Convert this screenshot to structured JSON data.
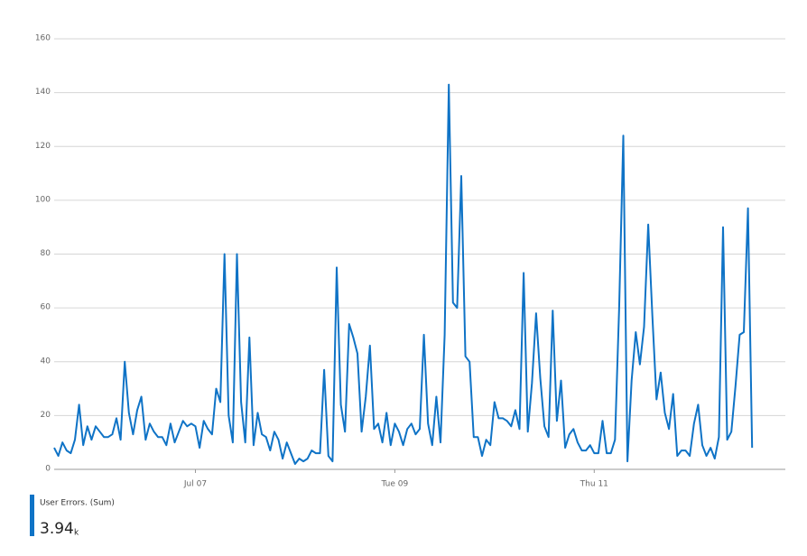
{
  "chart_data": {
    "type": "line",
    "x": [
      0,
      1,
      2,
      3,
      4,
      5,
      6,
      7,
      8,
      9,
      10,
      11,
      12,
      13,
      14,
      15,
      16,
      17,
      18,
      19,
      20,
      21,
      22,
      23,
      24,
      25,
      26,
      27,
      28,
      29,
      30,
      31,
      32,
      33,
      34,
      35,
      36,
      37,
      38,
      39,
      40,
      41,
      42,
      43,
      44,
      45,
      46,
      47,
      48,
      49,
      50,
      51,
      52,
      53,
      54,
      55,
      56,
      57,
      58,
      59,
      60,
      61,
      62,
      63,
      64,
      65,
      66,
      67,
      68,
      69,
      70,
      71,
      72,
      73,
      74,
      75,
      76,
      77,
      78,
      79,
      80,
      81,
      82,
      83,
      84,
      85,
      86,
      87,
      88,
      89,
      90,
      91,
      92,
      93,
      94,
      95,
      96,
      97,
      98,
      99,
      100,
      101,
      102,
      103,
      104,
      105,
      106,
      107,
      108,
      109,
      110,
      111,
      112,
      113,
      114,
      115,
      116,
      117,
      118,
      119,
      120,
      121,
      122,
      123,
      124,
      125,
      126,
      127,
      128,
      129,
      130,
      131,
      132,
      133,
      134,
      135,
      136,
      137,
      138,
      139,
      140,
      141,
      142,
      143,
      144,
      145,
      146,
      147,
      148,
      149,
      150,
      151,
      152,
      153,
      154,
      155,
      156,
      157,
      158,
      159,
      160,
      161,
      162,
      163,
      164,
      165,
      166,
      167,
      168
    ],
    "series": [
      {
        "name": "User Errors. (Sum)",
        "color": "#0f73c6",
        "values": [
          8,
          5,
          10,
          7,
          6,
          11,
          24,
          9,
          16,
          11,
          16,
          14,
          12,
          12,
          13,
          19,
          11,
          40,
          21,
          13,
          22,
          27,
          11,
          17,
          14,
          12,
          12,
          9,
          17,
          10,
          14,
          18,
          16,
          17,
          16,
          8,
          18,
          15,
          13,
          30,
          25,
          80,
          20,
          10,
          80,
          25,
          10,
          49,
          9,
          21,
          13,
          12,
          7,
          14,
          11,
          4,
          10,
          6,
          2,
          4,
          3,
          4,
          7,
          6,
          6,
          37,
          5,
          3,
          75,
          24,
          14,
          54,
          49,
          43,
          14,
          27,
          46,
          15,
          17,
          10,
          21,
          9,
          17,
          14,
          9,
          15,
          17,
          13,
          15,
          50,
          17,
          9,
          27,
          10,
          50,
          143,
          62,
          60,
          109,
          42,
          40,
          12,
          12,
          5,
          11,
          9,
          25,
          19,
          19,
          18,
          16,
          22,
          15,
          73,
          14,
          32,
          58,
          34,
          16,
          12,
          59,
          18,
          33,
          8,
          13,
          15,
          10,
          7,
          7,
          9,
          6,
          6,
          18,
          6,
          6,
          11,
          60,
          124,
          3,
          33,
          51,
          39,
          53,
          91,
          57,
          26,
          36,
          21,
          15,
          28,
          5,
          7,
          7,
          5,
          17,
          24,
          9,
          5,
          8,
          4,
          12,
          90,
          11,
          14,
          31,
          50,
          51,
          97,
          8
        ]
      }
    ],
    "xlim": [
      0,
      176
    ],
    "xticks": [
      {
        "value": 34,
        "label": "Jul 07"
      },
      {
        "value": 82,
        "label": "Tue 09"
      },
      {
        "value": 130,
        "label": "Thu 11"
      }
    ],
    "ylim": [
      0,
      160
    ],
    "yticks": [
      0,
      20,
      40,
      60,
      80,
      100,
      120,
      140,
      160
    ],
    "grid": true,
    "summary": {
      "value": "3.94",
      "unit": "k"
    }
  }
}
